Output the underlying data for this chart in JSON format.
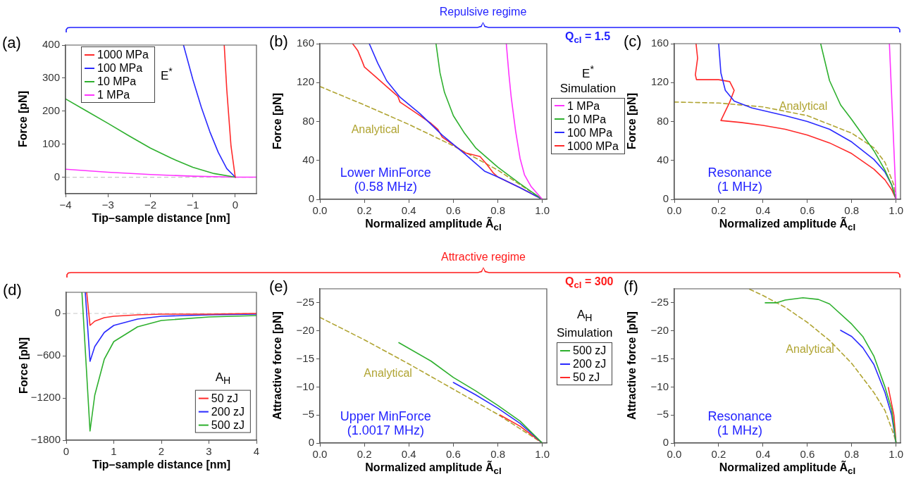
{
  "chart_data": [
    {
      "type": "line",
      "title": "(a)",
      "xlabel": "Tip–sample distance [nm]",
      "ylabel": "Force [pN]",
      "legend_title": "E$^{*}$",
      "legend": "top left",
      "xlim": [
        -4,
        0.5
      ],
      "xticks": [
        {
          "value": -4,
          "label": "−4"
        },
        {
          "value": -3,
          "label": "−3"
        },
        {
          "value": -2,
          "label": "−2"
        },
        {
          "value": -1,
          "label": "−1"
        },
        0
      ],
      "ylim": [
        -50,
        400
      ],
      "yticks": [
        0,
        100,
        200,
        300,
        400
      ],
      "ref_lines": [
        {
          "axis": "y",
          "value": 0,
          "color": "#c8c8c8",
          "line_style": "dashed"
        }
      ],
      "series": [
        {
          "name": "1000 MPa",
          "color": "#ff2a2a",
          "x": [
            -0.26,
            -0.2,
            -0.1,
            0
          ],
          "values": [
            400,
            265,
            94,
            0
          ]
        },
        {
          "name": "100 MPa",
          "color": "#2a2aff",
          "x": [
            -1.22,
            -1,
            -0.8,
            -0.6,
            -0.4,
            -0.2,
            0
          ],
          "values": [
            400,
            296,
            212,
            138,
            75,
            26,
            0
          ]
        },
        {
          "name": "10 MPa",
          "color": "#2eb02e",
          "x": [
            -4,
            -3.5,
            -3,
            -2.5,
            -2,
            -1.5,
            -1,
            -0.5,
            0
          ],
          "values": [
            237,
            200,
            163,
            125,
            88,
            57,
            30,
            11,
            0
          ]
        },
        {
          "name": "1 MPa",
          "color": "#ff33ff",
          "x": [
            -4,
            -3,
            -2,
            -1,
            0,
            0.5
          ],
          "values": [
            24,
            15,
            8,
            3,
            0,
            0
          ]
        }
      ]
    },
    {
      "type": "line",
      "title": "(b)",
      "xlabel": "Normalized amplitude Ã$_{cl}$",
      "ylabel": "Force [pN]",
      "legend_title": "E$^{*}$\nSimulation",
      "legend": "right",
      "xlim": [
        0,
        1.02
      ],
      "xticks": [
        {
          "value": 0,
          "label": "0.0"
        },
        {
          "value": 0.2,
          "label": "0.2"
        },
        {
          "value": 0.4,
          "label": "0.4"
        },
        {
          "value": 0.6,
          "label": "0.6"
        },
        {
          "value": 0.8,
          "label": "0.8"
        },
        {
          "value": 1,
          "label": "1.0"
        }
      ],
      "ylim": [
        0,
        160
      ],
      "yticks": [
        0,
        40,
        80,
        120,
        160
      ],
      "annotations": [
        "Lower MinForce\n(0.58 MHz)",
        "Analytical",
        "Repulsive regime",
        "Q$_{cl}$ = 1.5"
      ],
      "series": [
        {
          "name": "1 MPa",
          "color": "#ff33ff",
          "x": [
            0.838,
            0.85,
            0.86,
            0.88,
            0.9,
            0.92,
            0.95,
            1
          ],
          "values": [
            160,
            128,
            105,
            70,
            42,
            25,
            13,
            0
          ]
        },
        {
          "name": "10 MPa",
          "color": "#2eb02e",
          "x": [
            0.522,
            0.54,
            0.56,
            0.6,
            0.65,
            0.7,
            0.8,
            0.9,
            1
          ],
          "values": [
            160,
            130,
            110,
            86,
            68,
            53,
            33,
            16,
            0
          ]
        },
        {
          "name": "100 MPa",
          "color": "#2a2aff",
          "x": [
            0.222,
            0.26,
            0.3,
            0.36,
            0.45,
            0.55,
            0.65,
            0.7,
            0.74,
            0.8,
            0.9,
            1
          ],
          "values": [
            160,
            140,
            122,
            105,
            88,
            66,
            47,
            37,
            29,
            23,
            12,
            0
          ]
        },
        {
          "name": "1000 MPa",
          "color": "#ff2a2a",
          "x": [
            0.147,
            0.17,
            0.19,
            0.2,
            0.25,
            0.3,
            0.35,
            0.36,
            0.45,
            0.5,
            0.53,
            0.55,
            0.65,
            0.72,
            0.75,
            0.78,
            0.8,
            0.9,
            1
          ],
          "values": [
            160,
            153,
            142,
            136,
            126,
            116,
            106,
            100,
            86,
            78,
            72,
            64,
            48,
            44,
            36,
            27,
            23,
            12,
            0
          ]
        },
        {
          "color": "#b0a432",
          "line_style": "dashed",
          "x": [
            0,
            0.2,
            0.4,
            0.6,
            0.8,
            1
          ],
          "values": [
            116,
            97,
            77,
            55,
            30,
            0
          ]
        }
      ]
    },
    {
      "type": "line",
      "title": "(c)",
      "xlabel": "Normalized amplitude Ã$_{cl}$",
      "ylabel": "Force [pN]",
      "xlim": [
        0,
        1.02
      ],
      "xticks": [
        {
          "value": 0,
          "label": "0.0"
        },
        {
          "value": 0.2,
          "label": "0.2"
        },
        {
          "value": 0.4,
          "label": "0.4"
        },
        {
          "value": 0.6,
          "label": "0.6"
        },
        {
          "value": 0.8,
          "label": "0.8"
        },
        {
          "value": 1,
          "label": "1.0"
        }
      ],
      "ylim": [
        0,
        160
      ],
      "yticks": [
        0,
        40,
        80,
        120,
        160
      ],
      "annotations": [
        "Resonance\n(1 MHz)",
        "Analytical"
      ],
      "series": [
        {
          "color": "#ff33ff",
          "x": [
            0.97,
            1
          ],
          "values": [
            160,
            0
          ]
        },
        {
          "color": "#2eb02e",
          "x": [
            0.66,
            0.7,
            0.75,
            0.8,
            0.85,
            0.9,
            0.95,
            0.98,
            1
          ],
          "values": [
            160,
            122,
            97,
            82,
            66,
            50,
            30,
            15,
            0
          ]
        },
        {
          "color": "#2a2aff",
          "x": [
            0.2,
            0.21,
            0.23,
            0.27,
            0.35,
            0.5,
            0.6,
            0.7,
            0.8,
            0.9,
            0.95,
            0.98,
            1
          ],
          "values": [
            160,
            130,
            112,
            101,
            94,
            86,
            80,
            72,
            59,
            41,
            28,
            15,
            0
          ]
        },
        {
          "color": "#ff2a2a",
          "x": [
            0.098,
            0.105,
            0.095,
            0.1,
            0.2,
            0.25,
            0.27,
            0.25,
            0.21,
            0.3,
            0.4,
            0.5,
            0.6,
            0.7,
            0.8,
            0.9,
            0.95,
            0.98,
            1
          ],
          "values": [
            160,
            145,
            128,
            123,
            123,
            121,
            112,
            100,
            81,
            79,
            76,
            72,
            66,
            58,
            47,
            31,
            20,
            10,
            0
          ]
        },
        {
          "color": "#b0a432",
          "line_style": "dashed",
          "x": [
            0,
            0.2,
            0.4,
            0.6,
            0.8,
            0.9,
            0.95,
            0.99,
            1
          ],
          "values": [
            100,
            99,
            95,
            86,
            68,
            53,
            38,
            15,
            0
          ]
        }
      ]
    },
    {
      "type": "line",
      "title": "(d)",
      "xlabel": "Tip–sample distance [nm]",
      "ylabel": "Force [pN]",
      "legend_title": "A$_{H}$",
      "legend": "bottom right",
      "xlim": [
        0,
        4
      ],
      "xticks": [
        0,
        1,
        2,
        3,
        4
      ],
      "ylim": [
        -1800,
        300
      ],
      "yticks": [
        {
          "value": -1800,
          "label": "−1800"
        },
        {
          "value": -1200,
          "label": "−1200"
        },
        {
          "value": -600,
          "label": "−600"
        },
        0
      ],
      "ref_lines": [
        {
          "axis": "y",
          "value": 0,
          "color": "#c8c8c8",
          "line_style": "dashed"
        }
      ],
      "series": [
        {
          "name": "50 zJ",
          "color": "#ff2a2a",
          "x": [
            0.43,
            0.5,
            0.6,
            0.8,
            1,
            1.5,
            2,
            3,
            4
          ],
          "values": [
            300,
            -170,
            -110,
            -60,
            -40,
            -20,
            -10,
            -10,
            0
          ]
        },
        {
          "name": "200 zJ",
          "color": "#2a2aff",
          "x": [
            0.4,
            0.5,
            0.6,
            0.8,
            1,
            1.5,
            2,
            3,
            4
          ],
          "values": [
            300,
            -680,
            -470,
            -270,
            -170,
            -80,
            -40,
            -20,
            -10
          ]
        },
        {
          "name": "500 zJ",
          "color": "#2eb02e",
          "x": [
            0.33,
            0.5,
            0.6,
            0.8,
            1,
            1.5,
            2,
            3,
            4
          ],
          "values": [
            300,
            -1670,
            -1160,
            -650,
            -400,
            -190,
            -100,
            -50,
            -30
          ]
        }
      ]
    },
    {
      "type": "line",
      "title": "(e)",
      "xlabel": "Normalized amplitude Ã$_{cl}$",
      "ylabel": "Attractive force [pN]",
      "legend_title": "A$_{H}$\nSimulation",
      "legend": "right",
      "xlim": [
        0,
        1.02
      ],
      "xticks": [
        {
          "value": 0,
          "label": "0.0"
        },
        {
          "value": 0.2,
          "label": "0.2"
        },
        {
          "value": 0.4,
          "label": "0.4"
        },
        {
          "value": 0.6,
          "label": "0.6"
        },
        {
          "value": 0.8,
          "label": "0.8"
        },
        {
          "value": 1,
          "label": "1.0"
        }
      ],
      "ylim": [
        0,
        -27.5
      ],
      "yticks": [
        0,
        {
          "value": -5,
          "label": "−5"
        },
        {
          "value": -10,
          "label": "−10"
        },
        {
          "value": -15,
          "label": "−15"
        },
        {
          "value": -20,
          "label": "−20"
        },
        {
          "value": -25,
          "label": "−25"
        }
      ],
      "annotations": [
        "Upper MinForce\n(1.0017 MHz)",
        "Analytical",
        "Attractive regime",
        "Q$_{cl}$ = 300"
      ],
      "series": [
        {
          "name": "500 zJ",
          "color": "#2eb02e",
          "x": [
            0.355,
            0.5,
            0.6,
            0.7,
            0.8,
            0.9,
            1
          ],
          "values": [
            -17.9,
            -14.6,
            -11.7,
            -9.3,
            -6.7,
            -3.9,
            0
          ]
        },
        {
          "name": "200 zJ",
          "color": "#2a2aff",
          "x": [
            0.6,
            0.7,
            0.8,
            0.9,
            1
          ],
          "values": [
            -10.8,
            -8.6,
            -6.2,
            -3.5,
            0
          ]
        },
        {
          "name": "50 zJ",
          "color": "#ff2a2a",
          "x": [
            0.81,
            0.9,
            1
          ],
          "values": [
            -5,
            -3,
            0
          ]
        },
        {
          "color": "#b0a432",
          "line_style": "dashed",
          "x": [
            0,
            0.2,
            0.4,
            0.6,
            0.8,
            1
          ],
          "values": [
            -22.4,
            -18.4,
            -14.1,
            -9.6,
            -5.1,
            0
          ]
        }
      ]
    },
    {
      "type": "line",
      "title": "(f)",
      "xlabel": "Normalized amplitude Ã$_{cl}$",
      "ylabel": "Attractive force [pN]",
      "xlim": [
        0,
        1.02
      ],
      "xticks": [
        {
          "value": 0,
          "label": "0.0"
        },
        {
          "value": 0.2,
          "label": "0.2"
        },
        {
          "value": 0.4,
          "label": "0.4"
        },
        {
          "value": 0.6,
          "label": "0.6"
        },
        {
          "value": 0.8,
          "label": "0.8"
        },
        {
          "value": 1,
          "label": "1.0"
        }
      ],
      "ylim": [
        0,
        -27.5
      ],
      "yticks": [
        0,
        {
          "value": -5,
          "label": "−5"
        },
        {
          "value": -10,
          "label": "−10"
        },
        {
          "value": -15,
          "label": "−15"
        },
        {
          "value": -20,
          "label": "−20"
        },
        {
          "value": -25,
          "label": "−25"
        }
      ],
      "annotations": [
        "Resonance\n(1 MHz)",
        "Analytical"
      ],
      "series": [
        {
          "color": "#2eb02e",
          "x": [
            0.41,
            0.46,
            0.5,
            0.58,
            0.65,
            0.7,
            0.8,
            0.85,
            0.9,
            0.95,
            0.98,
            1
          ],
          "values": [
            -25,
            -25,
            -25.5,
            -25.9,
            -25.6,
            -24.8,
            -21.2,
            -19,
            -15.5,
            -10,
            -6,
            0
          ]
        },
        {
          "color": "#2a2aff",
          "x": [
            0.75,
            0.8,
            0.85,
            0.9,
            0.95,
            0.98,
            1
          ],
          "values": [
            -20.1,
            -19,
            -17,
            -14,
            -9,
            -5,
            0
          ]
        },
        {
          "color": "#ff2a2a",
          "x": [
            0.965,
            0.99,
            1
          ],
          "values": [
            -9.9,
            -5,
            0
          ]
        },
        {
          "color": "#b0a432",
          "line_style": "dashed",
          "x": [
            0.34,
            0.4,
            0.5,
            0.6,
            0.7,
            0.8,
            0.9,
            0.95,
            0.99,
            1
          ],
          "values": [
            -27.4,
            -26.3,
            -24.2,
            -21.5,
            -18.3,
            -14.2,
            -9,
            -5.8,
            -1.5,
            0
          ]
        }
      ]
    }
  ]
}
